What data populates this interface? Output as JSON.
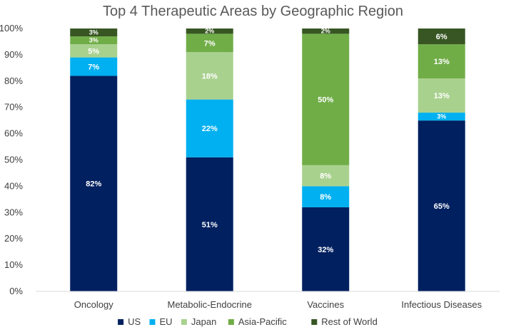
{
  "chart_data": {
    "type": "bar",
    "stacked": true,
    "title": "Top 4 Therapeutic Areas by Geographic Region",
    "xlabel": "",
    "ylabel": "",
    "ylim": [
      0,
      100
    ],
    "yticks": [
      "0%",
      "10%",
      "20%",
      "30%",
      "40%",
      "50%",
      "60%",
      "70%",
      "80%",
      "90%",
      "100%"
    ],
    "categories": [
      "Oncology",
      "Metabolic-Endocrine",
      "Vaccines",
      "Infectious Diseases"
    ],
    "series": [
      {
        "name": "US",
        "color": "#002060",
        "values": [
          82,
          51,
          32,
          65
        ]
      },
      {
        "name": "EU",
        "color": "#00B0F0",
        "values": [
          7,
          22,
          8,
          3
        ]
      },
      {
        "name": "Japan",
        "color": "#A9D18E",
        "values": [
          5,
          18,
          8,
          13
        ]
      },
      {
        "name": "Asia-Pacific",
        "color": "#70AD47",
        "values": [
          3,
          7,
          50,
          13
        ]
      },
      {
        "name": "Rest of World",
        "color": "#375623",
        "values": [
          3,
          2,
          2,
          6
        ]
      }
    ],
    "data_labels": [
      [
        "82%",
        "51%",
        "32%",
        "65%"
      ],
      [
        "7%",
        "22%",
        "8%",
        "3%"
      ],
      [
        "5%",
        "18%",
        "8%",
        "13%"
      ],
      [
        "3%",
        "7%",
        "50%",
        "13%"
      ],
      [
        "3%",
        "2%",
        "2%",
        "6%"
      ]
    ],
    "grid": false,
    "legend_position": "bottom"
  }
}
